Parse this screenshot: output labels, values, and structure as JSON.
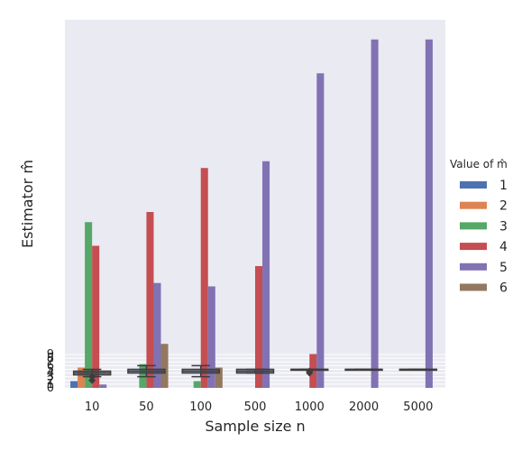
{
  "chart_data": {
    "type": "bar",
    "xlabel": "Sample size n",
    "ylabel": "Estimator m̂",
    "legend_title": "Value of m̂",
    "legend_position": "right",
    "grid": true,
    "background": "#EAEAF2",
    "categories": [
      "10",
      "50",
      "100",
      "500",
      "1000",
      "2000",
      "5000"
    ],
    "ylim": [
      0,
      100
    ],
    "series": [
      {
        "name": "1",
        "color": "#4C72B0",
        "values": [
          2,
          0,
          0,
          0,
          0,
          0,
          0
        ]
      },
      {
        "name": "2",
        "color": "#DD8452",
        "values": [
          6,
          0,
          0,
          0,
          0,
          0,
          0
        ]
      },
      {
        "name": "3",
        "color": "#55A868",
        "values": [
          49,
          7,
          2,
          0,
          0,
          0,
          0
        ]
      },
      {
        "name": "4",
        "color": "#C44E52",
        "values": [
          42,
          52,
          65,
          36,
          10,
          0,
          0
        ]
      },
      {
        "name": "5",
        "color": "#8172B3",
        "values": [
          1,
          31,
          30,
          67,
          93,
          103,
          103
        ]
      },
      {
        "name": "6",
        "color": "#937860",
        "values": [
          0,
          13,
          6,
          0,
          0,
          0,
          0
        ]
      }
    ],
    "boxplot_overlay": {
      "y_ticks": [
        "0",
        "1",
        "2",
        "3",
        "4",
        "5",
        "6",
        "7",
        "8",
        "9"
      ],
      "y_range": [
        0,
        9
      ],
      "boxes": [
        {
          "category": "10",
          "whisker_low": 3,
          "q1": 3.5,
          "median": 4,
          "q3": 4.5,
          "whisker_high": 5,
          "outliers": [
            2,
            3
          ]
        },
        {
          "category": "50",
          "whisker_low": 3,
          "q1": 4,
          "median": 4.5,
          "q3": 5,
          "whisker_high": 6,
          "outliers": []
        },
        {
          "category": "100",
          "whisker_low": 3,
          "q1": 4,
          "median": 4.5,
          "q3": 5,
          "whisker_high": 6,
          "outliers": []
        },
        {
          "category": "500",
          "whisker_low": 4,
          "q1": 4,
          "median": 4.5,
          "q3": 5,
          "whisker_high": 5,
          "outliers": []
        },
        {
          "category": "1000",
          "whisker_low": 5,
          "q1": 5,
          "median": 5,
          "q3": 5,
          "whisker_high": 5,
          "outliers": [
            4,
            4.5
          ]
        },
        {
          "category": "2000",
          "whisker_low": 5,
          "q1": 5,
          "median": 5,
          "q3": 5,
          "whisker_high": 5,
          "outliers": []
        },
        {
          "category": "5000",
          "whisker_low": 5,
          "q1": 5,
          "median": 5,
          "q3": 5,
          "whisker_high": 5,
          "outliers": []
        }
      ]
    }
  }
}
